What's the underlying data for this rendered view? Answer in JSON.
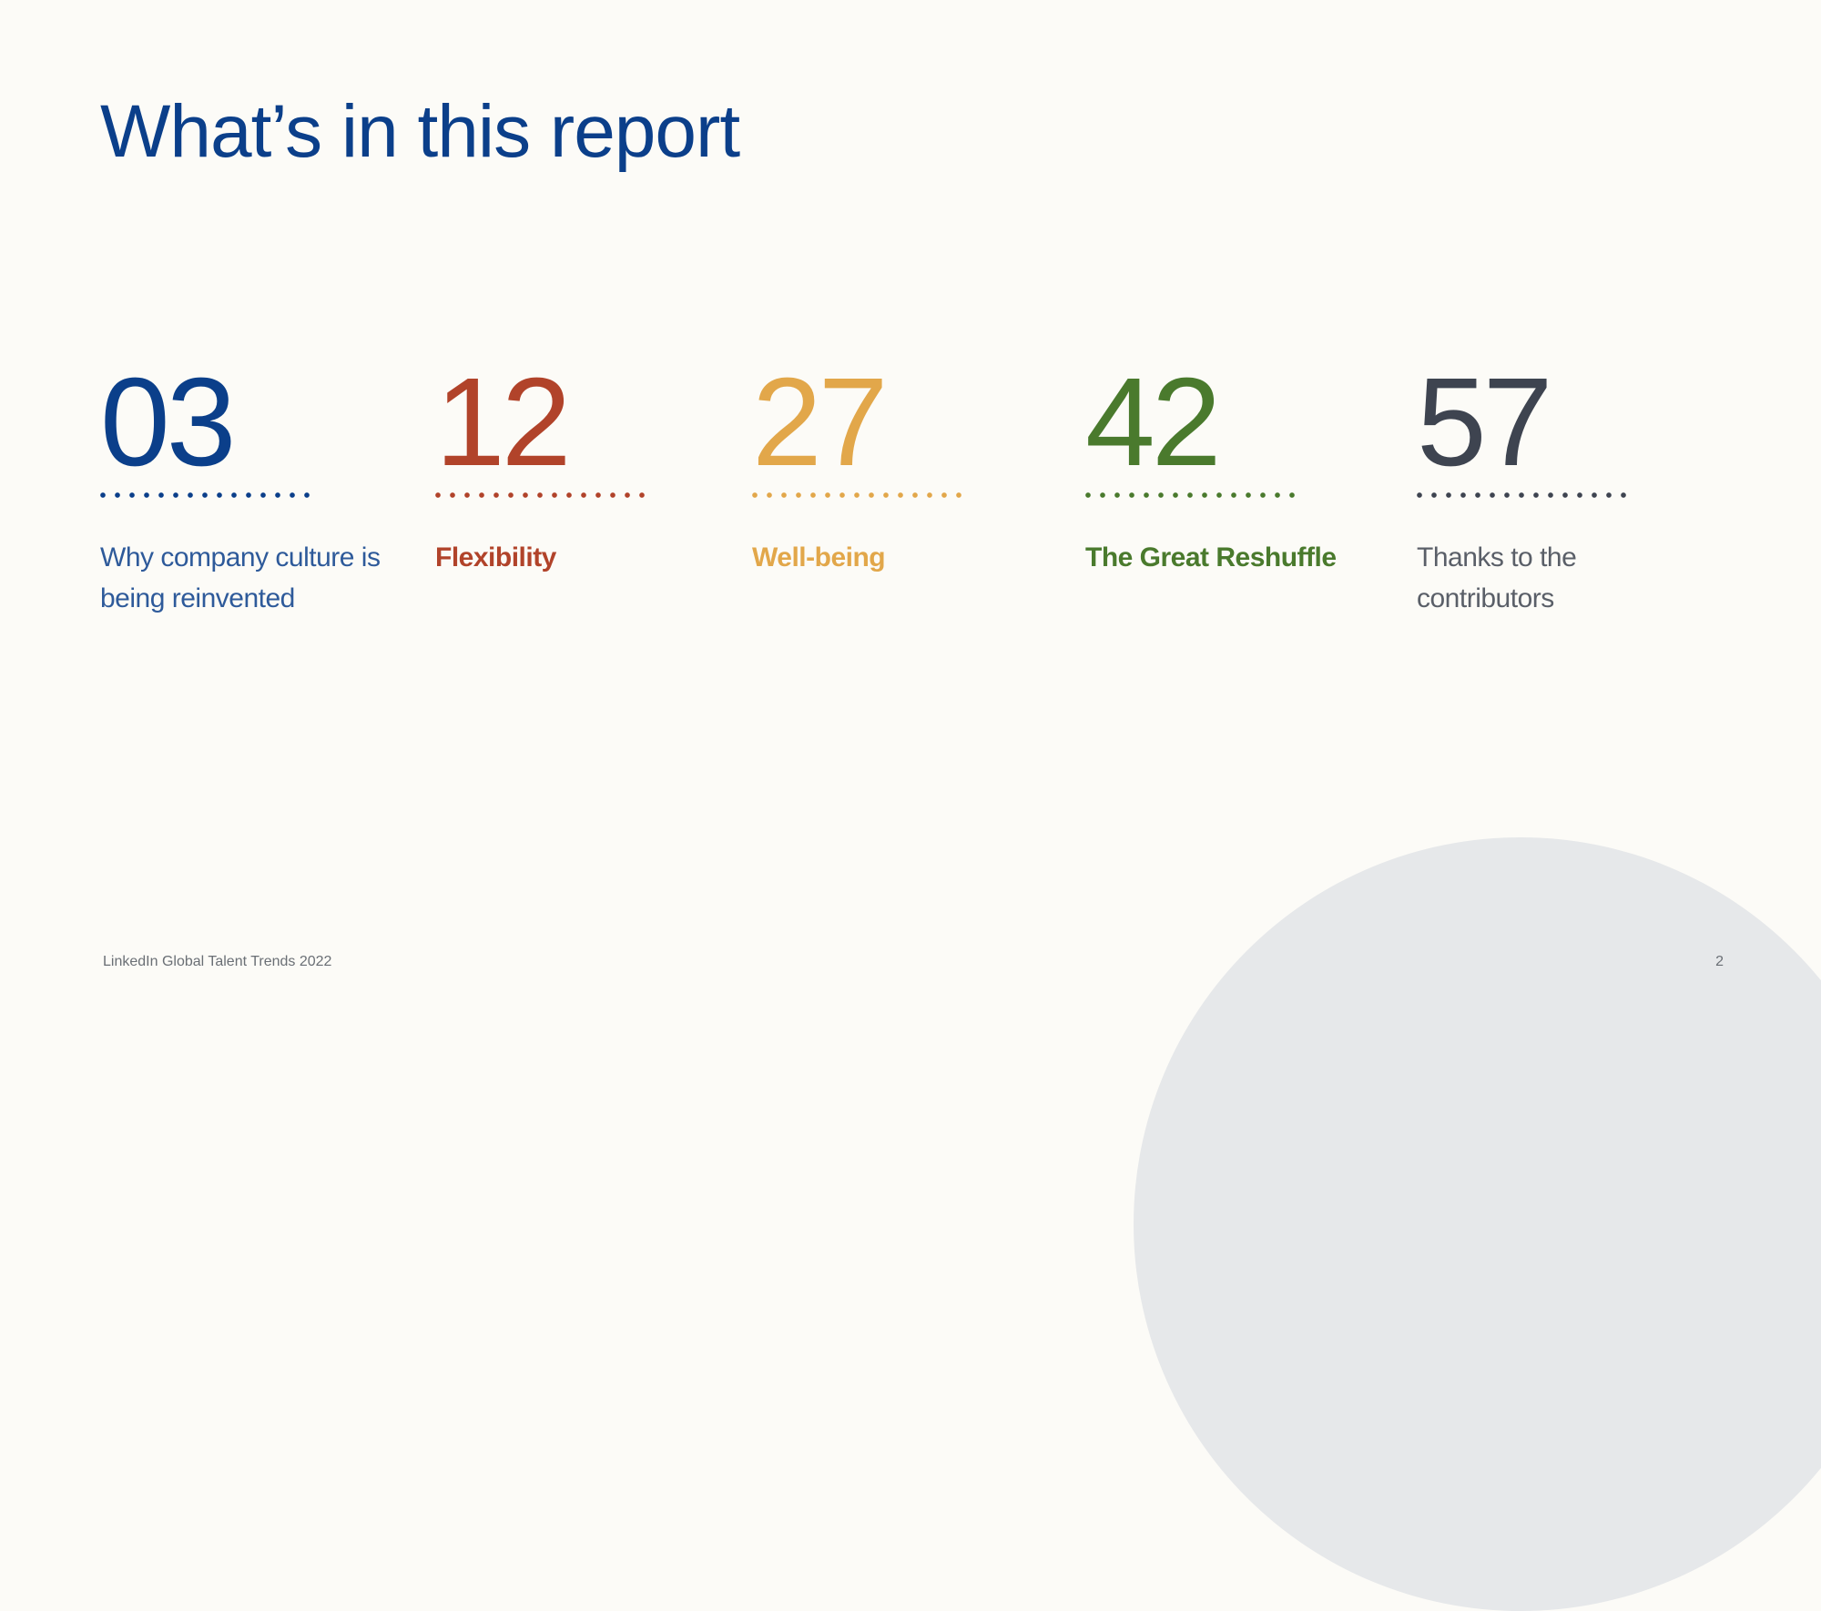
{
  "title": "What’s in this report",
  "colors": {
    "background": "#fcfbf7",
    "title": "#0b3f8a",
    "decor": "#e6e8ea",
    "footer": "#6a6f75"
  },
  "sections": [
    {
      "number": "03",
      "label": "Why company culture is being reinvented",
      "color": "#0b3f8a",
      "weight": "light"
    },
    {
      "number": "12",
      "label": "Flexibility",
      "color": "#b1432a",
      "weight": "bold"
    },
    {
      "number": "27",
      "label": "Well-being",
      "color": "#e2a74a",
      "weight": "bold"
    },
    {
      "number": "42",
      "label": "The Great Reshuffle",
      "color": "#4a7a2d",
      "weight": "bold"
    },
    {
      "number": "57",
      "label": "Thanks to the contributors",
      "color": "#3e4450",
      "weight": "light"
    }
  ],
  "footer": {
    "source": "LinkedIn Global Talent Trends 2022",
    "page_number": "2"
  }
}
